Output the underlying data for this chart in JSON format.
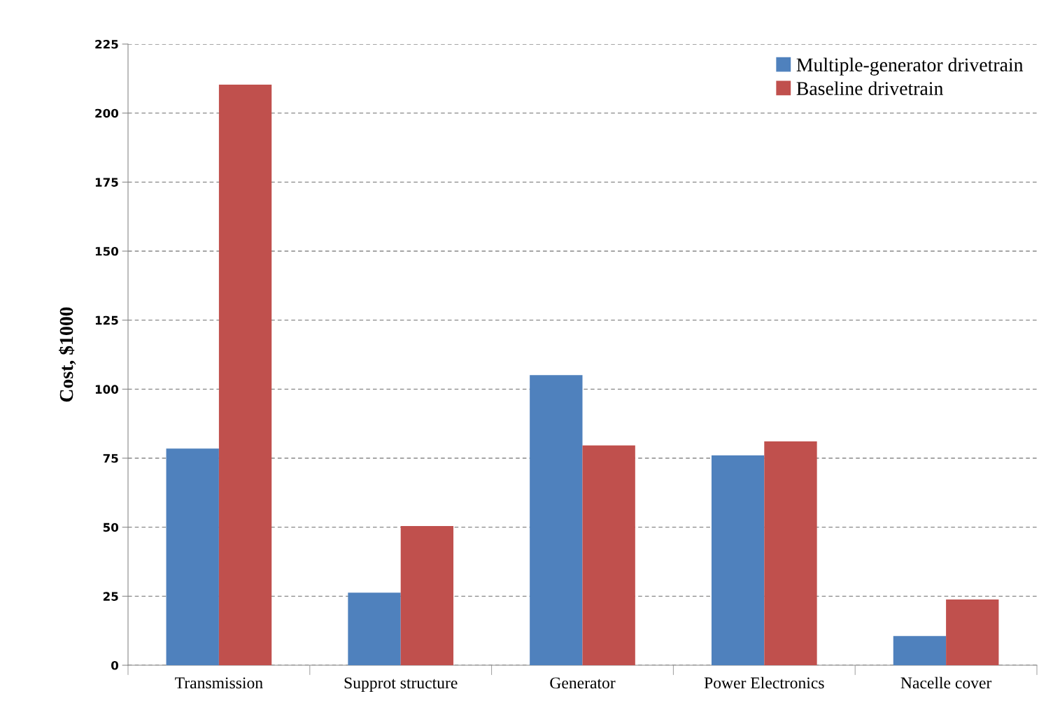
{
  "chart_data": {
    "type": "bar",
    "ylabel": "Cost, $1000",
    "categories": [
      "Transmission",
      "Supprot structure",
      "Generator",
      "Power Electronics",
      "Nacelle cover"
    ],
    "series": [
      {
        "name": "Multiple-generator drivetrain",
        "color": "#4f81bd",
        "values": [
          78.5,
          26.3,
          105.1,
          76,
          10.6
        ]
      },
      {
        "name": "Baseline drivetrain",
        "color": "#c0504d",
        "values": [
          210.3,
          50.4,
          79.6,
          81.1,
          23.8
        ]
      }
    ],
    "ylim": [
      0,
      225
    ],
    "yticks": [
      0,
      25,
      50,
      75,
      100,
      125,
      150,
      175,
      200,
      225
    ],
    "grid": "y",
    "legend": "top right"
  }
}
